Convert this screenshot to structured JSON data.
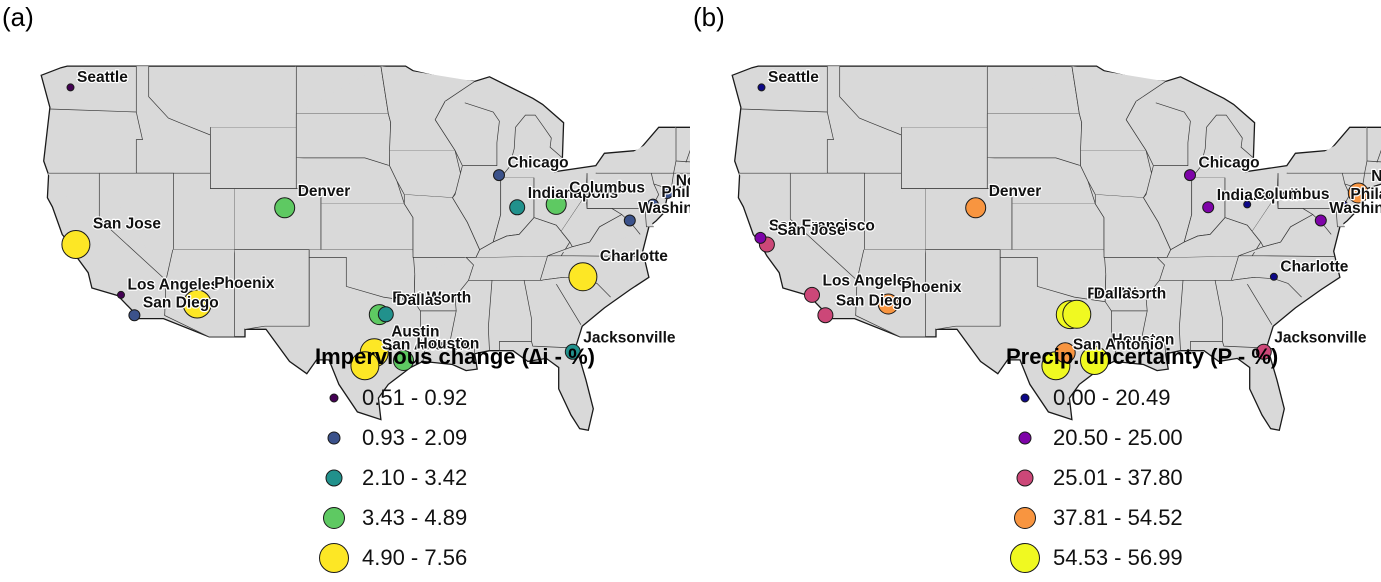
{
  "panels": [
    {
      "tag": "(a)",
      "legend_title": "Impervious change (∆i - %)",
      "legend": [
        {
          "label": "0.51 - 0.92",
          "color": "#440154",
          "size": 1
        },
        {
          "label": "0.93 - 2.09",
          "color": "#3b528b",
          "size": 2
        },
        {
          "label": "2.10 - 3.42",
          "color": "#21918c",
          "size": 3
        },
        {
          "label": "3.43 - 4.89",
          "color": "#5ec962",
          "size": 4
        },
        {
          "label": "4.90 - 7.56",
          "color": "#fde725",
          "size": 5
        }
      ],
      "cities": [
        {
          "label": "Seattle",
          "lon": -122.33,
          "lat": 47.61,
          "cls": 1
        },
        {
          "label": "San Jose",
          "lon": -121.89,
          "lat": 37.34,
          "cls": 5
        },
        {
          "label": "Los Angeles",
          "lon": -118.24,
          "lat": 34.05,
          "cls": 1
        },
        {
          "label": "San Diego",
          "lon": -117.16,
          "lat": 32.72,
          "cls": 2
        },
        {
          "label": "Phoenix",
          "lon": -112.07,
          "lat": 33.45,
          "cls": 5
        },
        {
          "label": "Denver",
          "lon": -104.99,
          "lat": 39.74,
          "cls": 4
        },
        {
          "label": "Fort Worth",
          "lon": -97.33,
          "lat": 32.76,
          "cls": 4
        },
        {
          "label": "Dallas",
          "lon": -96.8,
          "lat": 32.78,
          "cls": 3
        },
        {
          "label": "Austin",
          "lon": -97.74,
          "lat": 30.27,
          "cls": 5
        },
        {
          "label": "San Antonio",
          "lon": -98.49,
          "lat": 29.42,
          "cls": 5
        },
        {
          "label": "Houston",
          "lon": -95.37,
          "lat": 29.76,
          "cls": 4
        },
        {
          "label": "Chicago",
          "lon": -87.63,
          "lat": 41.88,
          "cls": 2
        },
        {
          "label": "Indianapolis",
          "lon": -86.16,
          "lat": 39.77,
          "cls": 3
        },
        {
          "label": "Columbus",
          "lon": -83.0,
          "lat": 39.96,
          "cls": 4
        },
        {
          "label": "Charlotte",
          "lon": -80.84,
          "lat": 35.23,
          "cls": 5
        },
        {
          "label": "Jacksonville",
          "lon": -81.66,
          "lat": 30.33,
          "cls": 3
        },
        {
          "label": "Washington",
          "lon": -77.04,
          "lat": 38.91,
          "cls": 2
        },
        {
          "label": "Philadelphia",
          "lon": -75.17,
          "lat": 39.95,
          "cls": 2
        },
        {
          "label": "New York",
          "lon": -74.01,
          "lat": 40.71,
          "cls": 2
        }
      ]
    },
    {
      "tag": "(b)",
      "legend_title": "Precip. uncertainty (P - %)",
      "legend": [
        {
          "label": "0.00 - 20.49",
          "color": "#0d0887",
          "size": 1
        },
        {
          "label": "20.50 - 25.00",
          "color": "#7e03a8",
          "size": 2
        },
        {
          "label": "25.01 - 37.80",
          "color": "#cc4778",
          "size": 3
        },
        {
          "label": "37.81 - 54.52",
          "color": "#f89540",
          "size": 4
        },
        {
          "label": "54.53 - 56.99",
          "color": "#f0f921",
          "size": 5
        }
      ],
      "cities": [
        {
          "label": "Seattle",
          "lon": -122.33,
          "lat": 47.61,
          "cls": 1
        },
        {
          "label": "San Francisco",
          "lon": -122.42,
          "lat": 37.77,
          "cls": 2
        },
        {
          "label": "San Jose",
          "lon": -121.89,
          "lat": 37.34,
          "cls": 3
        },
        {
          "label": "Los Angeles",
          "lon": -118.24,
          "lat": 34.05,
          "cls": 3
        },
        {
          "label": "San Diego",
          "lon": -117.16,
          "lat": 32.72,
          "cls": 3
        },
        {
          "label": "Phoenix",
          "lon": -112.07,
          "lat": 33.45,
          "cls": 4
        },
        {
          "label": "Denver",
          "lon": -104.99,
          "lat": 39.74,
          "cls": 4
        },
        {
          "label": "Fort Worth",
          "lon": -97.33,
          "lat": 32.76,
          "cls": 5
        },
        {
          "label": "Dallas",
          "lon": -96.8,
          "lat": 32.78,
          "cls": 5
        },
        {
          "label": "Houston",
          "lon": -95.37,
          "lat": 29.76,
          "cls": 5
        },
        {
          "label": "San Antonio",
          "lon": -98.49,
          "lat": 29.42,
          "cls": 5
        },
        {
          "label": "",
          "lon": -97.74,
          "lat": 30.27,
          "cls": 4
        },
        {
          "label": "Chicago",
          "lon": -87.63,
          "lat": 41.88,
          "cls": 2
        },
        {
          "label": "Indianapolis",
          "lon": -86.16,
          "lat": 39.77,
          "cls": 2
        },
        {
          "label": "Columbus",
          "lon": -83.0,
          "lat": 39.96,
          "cls": 1
        },
        {
          "label": "Philadelphia",
          "lon": -75.17,
          "lat": 39.95,
          "cls": 1
        },
        {
          "label": "New York",
          "lon": -74.01,
          "lat": 40.71,
          "cls": 4
        },
        {
          "label": "Washington",
          "lon": -77.04,
          "lat": 38.91,
          "cls": 2
        },
        {
          "label": "Charlotte",
          "lon": -80.84,
          "lat": 35.23,
          "cls": 1
        },
        {
          "label": "Jacksonville",
          "lon": -81.66,
          "lat": 30.33,
          "cls": 3
        }
      ]
    }
  ]
}
